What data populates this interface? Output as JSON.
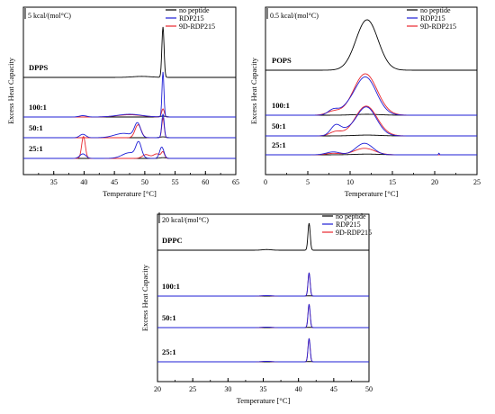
{
  "chart_data": [
    {
      "type": "line",
      "xlabel": "Temperature [°C]",
      "ylabel": "Excess Heat Capacity",
      "scale_label": "5 kcal/(mol°C)",
      "xlim": [
        30,
        65
      ],
      "xticks": [
        35,
        40,
        45,
        50,
        55,
        60,
        65
      ],
      "legend": [
        "no peptide",
        "RDP215",
        "9D-RDP215"
      ],
      "legend_position": "top-right",
      "colors": {
        "no peptide": "#000000",
        "RDP215": "#1f1fd6",
        "9D-RDP215": "#e8262d"
      },
      "groups": [
        {
          "label": "DPPS",
          "series": [
            {
              "name": "no peptide",
              "peaks": [
                [
                  53.0,
                  1.0,
                  0.18
                ],
                [
                  49.5,
                  0.02,
                  1.5
                ]
              ]
            }
          ]
        },
        {
          "label": "100:1",
          "series": [
            {
              "name": "no peptide",
              "peaks": [
                [
                  53.0,
                  0.02,
                  0.5
                ]
              ]
            },
            {
              "name": "RDP215",
              "peaks": [
                [
                  53.0,
                  1.0,
                  0.16
                ],
                [
                  47.5,
                  0.06,
                  2.0
                ],
                [
                  39.8,
                  0.03,
                  0.6
                ]
              ]
            },
            {
              "name": "9D-RDP215",
              "peaks": [
                [
                  53.0,
                  0.18,
                  0.22
                ],
                [
                  47.5,
                  0.05,
                  2.0
                ]
              ]
            }
          ]
        },
        {
          "label": "50:1",
          "series": [
            {
              "name": "no peptide",
              "peaks": [
                [
                  53.0,
                  0.02,
                  0.5
                ]
              ]
            },
            {
              "name": "RDP215",
              "peaks": [
                [
                  53.0,
                  0.55,
                  0.2
                ],
                [
                  48.8,
                  0.32,
                  0.5
                ],
                [
                  46.5,
                  0.1,
                  1.5
                ],
                [
                  39.8,
                  0.08,
                  0.5
                ]
              ]
            },
            {
              "name": "9D-RDP215",
              "peaks": [
                [
                  53.0,
                  0.45,
                  0.2
                ],
                [
                  48.9,
                  0.3,
                  0.5
                ]
              ]
            }
          ]
        },
        {
          "label": "25:1",
          "series": [
            {
              "name": "no peptide",
              "peaks": [
                [
                  53.0,
                  0.02,
                  0.5
                ]
              ]
            },
            {
              "name": "RDP215",
              "peaks": [
                [
                  49.0,
                  0.38,
                  0.45
                ],
                [
                  47.5,
                  0.15,
                  1.2
                ],
                [
                  52.8,
                  0.3,
                  0.35
                ],
                [
                  39.8,
                  0.12,
                  0.5
                ]
              ]
            },
            {
              "name": "9D-RDP215",
              "peaks": [
                [
                  39.9,
                  0.58,
                  0.3
                ],
                [
                  50.2,
                  0.1,
                  0.6
                ],
                [
                  52.0,
                  0.12,
                  0.6
                ],
                [
                  53.0,
                  0.15,
                  0.25
                ]
              ]
            }
          ]
        }
      ]
    },
    {
      "type": "line",
      "xlabel": "Temperature [°C]",
      "ylabel": "Excess Heat Capacity",
      "scale_label": "0.5 kcal/(mol°C)",
      "xlim": [
        0,
        25
      ],
      "xticks": [
        0,
        5,
        10,
        15,
        20,
        25
      ],
      "legend": [
        "no peptide",
        "RDP215",
        "9D-RDP215"
      ],
      "legend_position": "top-right",
      "colors": {
        "no peptide": "#000000",
        "RDP215": "#1f1fd6",
        "9D-RDP215": "#e8262d"
      },
      "groups": [
        {
          "label": "POPS",
          "series": [
            {
              "name": "no peptide",
              "peaks": [
                [
                  12.0,
                  1.0,
                  1.3
                ]
              ]
            }
          ]
        },
        {
          "label": "100:1",
          "series": [
            {
              "name": "no peptide",
              "peaks": [
                [
                  12.0,
                  0.02,
                  1.5
                ]
              ]
            },
            {
              "name": "RDP215",
              "peaks": [
                [
                  11.8,
                  0.85,
                  1.3
                ],
                [
                  8.0,
                  0.12,
                  0.6
                ],
                [
                  9.5,
                  0.08,
                  0.8
                ]
              ]
            },
            {
              "name": "9D-RDP215",
              "peaks": [
                [
                  11.8,
                  0.92,
                  1.4
                ],
                [
                  8.0,
                  0.08,
                  0.8
                ]
              ]
            }
          ]
        },
        {
          "label": "50:1",
          "series": [
            {
              "name": "no peptide",
              "peaks": [
                [
                  12.0,
                  0.02,
                  1.5
                ]
              ]
            },
            {
              "name": "RDP215",
              "peaks": [
                [
                  11.9,
                  0.7,
                  1.2
                ],
                [
                  8.3,
                  0.25,
                  0.6
                ],
                [
                  9.5,
                  0.08,
                  0.7
                ]
              ]
            },
            {
              "name": "9D-RDP215",
              "peaks": [
                [
                  11.9,
                  0.72,
                  1.3
                ],
                [
                  8.3,
                  0.1,
                  0.7
                ]
              ]
            }
          ]
        },
        {
          "label": "25:1",
          "series": [
            {
              "name": "no peptide",
              "peaks": [
                [
                  12.0,
                  0.02,
                  1.5
                ]
              ]
            },
            {
              "name": "RDP215",
              "peaks": [
                [
                  11.7,
                  0.32,
                  1.0
                ],
                [
                  8.0,
                  0.08,
                  0.8
                ],
                [
                  20.5,
                  0.05,
                  0.05
                ]
              ]
            },
            {
              "name": "9D-RDP215",
              "peaks": [
                [
                  11.7,
                  0.18,
                  1.2
                ],
                [
                  8.0,
                  0.04,
                  0.8
                ]
              ]
            }
          ]
        }
      ]
    },
    {
      "type": "line",
      "xlabel": "Temperature [°C]",
      "ylabel": "Excess Heat Capacity",
      "scale_label": "20 kcal/(mol°C)",
      "xlim": [
        20,
        50
      ],
      "xticks": [
        20,
        25,
        30,
        35,
        40,
        45,
        50
      ],
      "legend": [
        "no peptide",
        "RDP215",
        "9D-RDP215"
      ],
      "legend_position": "top-right",
      "colors": {
        "no peptide": "#000000",
        "RDP215": "#1f1fd6",
        "9D-RDP215": "#e8262d"
      },
      "groups": [
        {
          "label": "DPPC",
          "series": [
            {
              "name": "no peptide",
              "peaks": [
                [
                  41.5,
                  1.0,
                  0.16
                ],
                [
                  35.5,
                  0.025,
                  0.6
                ]
              ]
            }
          ]
        },
        {
          "label": "100:1",
          "series": [
            {
              "name": "no peptide",
              "peaks": [
                [
                  41.5,
                  0.01,
                  0.5
                ]
              ]
            },
            {
              "name": "RDP215",
              "peaks": [
                [
                  41.5,
                  1.0,
                  0.15
                ],
                [
                  35.5,
                  0.02,
                  0.6
                ]
              ]
            },
            {
              "name": "9D-RDP215",
              "peaks": [
                [
                  41.5,
                  1.0,
                  0.15
                ],
                [
                  35.5,
                  0.02,
                  0.6
                ]
              ]
            }
          ]
        },
        {
          "label": "50:1",
          "series": [
            {
              "name": "no peptide",
              "peaks": [
                [
                  41.5,
                  0.01,
                  0.5
                ]
              ]
            },
            {
              "name": "RDP215",
              "peaks": [
                [
                  41.5,
                  1.0,
                  0.15
                ],
                [
                  35.5,
                  0.02,
                  0.6
                ]
              ]
            },
            {
              "name": "9D-RDP215",
              "peaks": [
                [
                  41.5,
                  1.0,
                  0.15
                ],
                [
                  35.5,
                  0.02,
                  0.6
                ]
              ]
            }
          ]
        },
        {
          "label": "25:1",
          "series": [
            {
              "name": "no peptide",
              "peaks": [
                [
                  41.5,
                  0.01,
                  0.5
                ]
              ]
            },
            {
              "name": "RDP215",
              "peaks": [
                [
                  41.5,
                  1.0,
                  0.15
                ],
                [
                  35.5,
                  0.02,
                  0.6
                ]
              ]
            },
            {
              "name": "9D-RDP215",
              "peaks": [
                [
                  41.5,
                  1.0,
                  0.15
                ],
                [
                  35.5,
                  0.02,
                  0.6
                ]
              ]
            }
          ]
        }
      ]
    }
  ]
}
